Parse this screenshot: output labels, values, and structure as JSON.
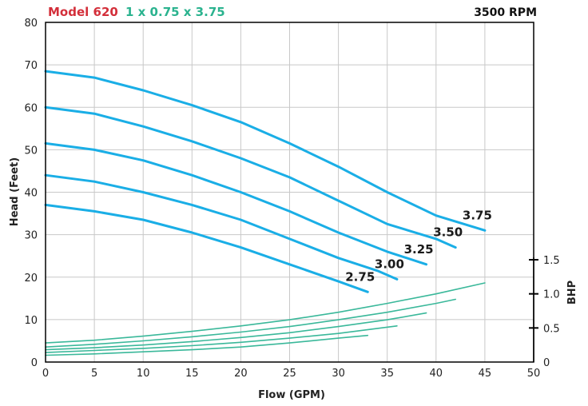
{
  "chart_data": {
    "type": "line",
    "title_model": "Model 620",
    "title_size": "1 x 0.75 x 3.75",
    "speed": "3500 RPM",
    "xlabel": "Flow (GPM)",
    "ylabel": "Head (Feet)",
    "y2label": "BHP",
    "xlim": [
      0,
      50
    ],
    "ylim": [
      0,
      80
    ],
    "y2lim": [
      0,
      1.5
    ],
    "x_ticks": [
      "0",
      "5",
      "10",
      "15",
      "20",
      "25",
      "30",
      "35",
      "40",
      "45",
      "50"
    ],
    "y_ticks": [
      "0",
      "10",
      "20",
      "30",
      "40",
      "50",
      "60",
      "70",
      "80"
    ],
    "y2_ticks": [
      "0",
      "0.5",
      "1.0",
      "1.5"
    ],
    "grid": true,
    "head_series": [
      {
        "name": "3.75",
        "x": [
          0,
          5,
          10,
          15,
          20,
          25,
          30,
          35,
          40,
          45
        ],
        "y": [
          68.5,
          67,
          64,
          60.5,
          56.5,
          51.5,
          46,
          40,
          34.5,
          31
        ]
      },
      {
        "name": "3.50",
        "x": [
          0,
          5,
          10,
          15,
          20,
          25,
          30,
          35,
          40,
          42
        ],
        "y": [
          60,
          58.5,
          55.5,
          52,
          48,
          43.5,
          38,
          32.5,
          29,
          27
        ]
      },
      {
        "name": "3.25",
        "x": [
          0,
          5,
          10,
          15,
          20,
          25,
          30,
          35,
          39
        ],
        "y": [
          51.5,
          50,
          47.5,
          44,
          40,
          35.5,
          30.5,
          26,
          23
        ]
      },
      {
        "name": "3.00",
        "x": [
          0,
          5,
          10,
          15,
          20,
          25,
          30,
          34,
          36
        ],
        "y": [
          44,
          42.5,
          40,
          37,
          33.5,
          29,
          24.5,
          21.5,
          19.5
        ]
      },
      {
        "name": "2.75",
        "x": [
          0,
          5,
          10,
          15,
          20,
          25,
          30,
          33
        ],
        "y": [
          37,
          35.5,
          33.5,
          30.5,
          27,
          23,
          19,
          16.5
        ]
      }
    ],
    "bhp_series": [
      {
        "name": "3.75",
        "x": [
          0,
          5,
          10,
          15,
          20,
          25,
          30,
          35,
          40,
          45
        ],
        "y": [
          0.28,
          0.32,
          0.38,
          0.45,
          0.53,
          0.62,
          0.73,
          0.86,
          1.0,
          1.16
        ]
      },
      {
        "name": "3.50",
        "x": [
          0,
          5,
          10,
          15,
          20,
          25,
          30,
          35,
          40,
          42
        ],
        "y": [
          0.22,
          0.26,
          0.31,
          0.37,
          0.44,
          0.52,
          0.62,
          0.73,
          0.86,
          0.92
        ]
      },
      {
        "name": "3.25",
        "x": [
          0,
          5,
          10,
          15,
          20,
          25,
          30,
          35,
          39
        ],
        "y": [
          0.18,
          0.21,
          0.25,
          0.3,
          0.36,
          0.43,
          0.52,
          0.62,
          0.72
        ]
      },
      {
        "name": "3.00",
        "x": [
          0,
          5,
          10,
          15,
          20,
          25,
          30,
          36
        ],
        "y": [
          0.14,
          0.17,
          0.2,
          0.24,
          0.29,
          0.35,
          0.42,
          0.53
        ]
      },
      {
        "name": "2.75",
        "x": [
          0,
          5,
          10,
          15,
          20,
          25,
          30,
          33
        ],
        "y": [
          0.1,
          0.12,
          0.15,
          0.18,
          0.22,
          0.28,
          0.35,
          0.39
        ]
      }
    ],
    "colors": {
      "head": "#1aaee6",
      "bhp": "#3ab89a",
      "grid": "#c8c8c8",
      "model": "#d32f3a",
      "size": "#2bb38f"
    }
  }
}
